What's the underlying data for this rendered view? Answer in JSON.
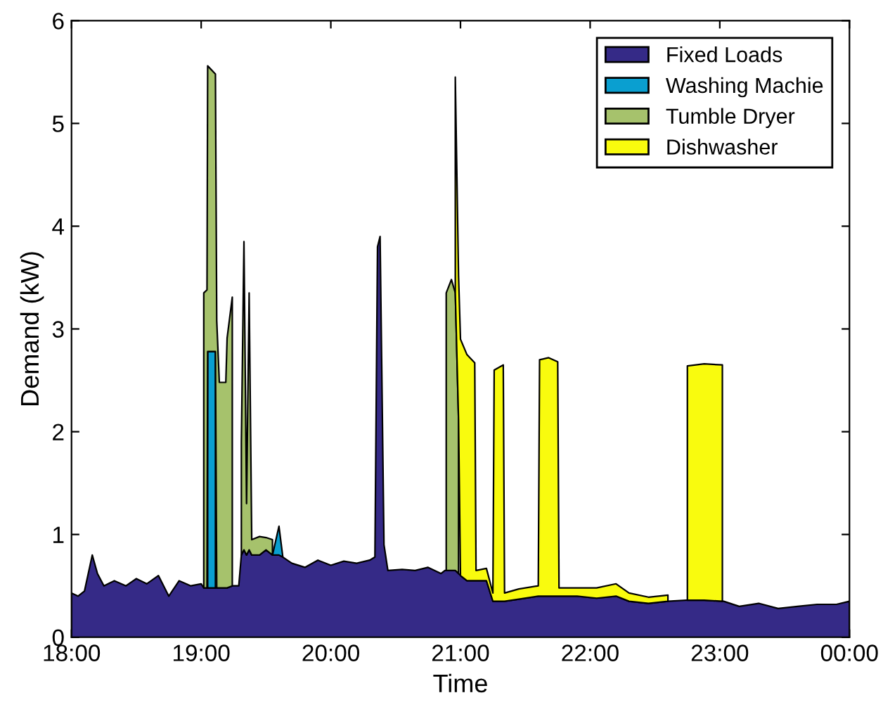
{
  "chart_data": {
    "type": "area",
    "stacked": true,
    "xlabel": "Time",
    "ylabel": "Demand (kW)",
    "x": [
      18.0,
      18.05,
      18.1,
      18.16,
      18.2,
      18.25,
      18.33,
      18.42,
      18.5,
      18.58,
      18.67,
      18.75,
      18.83,
      18.92,
      19.0,
      19.02,
      19.045,
      19.05,
      19.11,
      19.12,
      19.14,
      19.19,
      19.2,
      19.24,
      19.26,
      19.29,
      19.31,
      19.33,
      19.35,
      19.37,
      19.39,
      19.45,
      19.5,
      19.55,
      19.6,
      19.63,
      19.7,
      19.8,
      19.9,
      20.0,
      20.1,
      20.2,
      20.3,
      20.34,
      20.36,
      20.38,
      20.41,
      20.44,
      20.55,
      20.65,
      20.75,
      20.85,
      20.88,
      20.89,
      20.93,
      20.96,
      20.985,
      21.0,
      21.05,
      21.11,
      21.12,
      21.2,
      21.25,
      21.26,
      21.33,
      21.34,
      21.45,
      21.6,
      21.61,
      21.68,
      21.75,
      21.76,
      21.9,
      22.05,
      22.2,
      22.3,
      22.45,
      22.6,
      22.74,
      22.75,
      22.88,
      23.02,
      23.03,
      23.15,
      23.3,
      23.45,
      23.6,
      23.75,
      23.9,
      24.0
    ],
    "series": [
      {
        "name": "Fixed Loads",
        "color": "#352a87",
        "values": [
          0.43,
          0.4,
          0.45,
          0.8,
          0.62,
          0.5,
          0.55,
          0.5,
          0.57,
          0.52,
          0.6,
          0.4,
          0.55,
          0.5,
          0.52,
          0.48,
          0.48,
          0.48,
          0.48,
          0.48,
          0.48,
          0.48,
          0.48,
          0.5,
          0.5,
          0.5,
          0.8,
          0.85,
          0.8,
          0.85,
          0.8,
          0.8,
          0.85,
          0.8,
          0.8,
          0.78,
          0.72,
          0.68,
          0.75,
          0.7,
          0.74,
          0.72,
          0.75,
          0.78,
          3.8,
          3.9,
          0.9,
          0.65,
          0.66,
          0.65,
          0.68,
          0.62,
          0.65,
          0.65,
          0.65,
          0.65,
          0.62,
          0.6,
          0.55,
          0.55,
          0.55,
          0.55,
          0.35,
          0.35,
          0.35,
          0.35,
          0.37,
          0.4,
          0.4,
          0.4,
          0.4,
          0.4,
          0.4,
          0.38,
          0.4,
          0.35,
          0.33,
          0.35,
          0.36,
          0.36,
          0.36,
          0.35,
          0.35,
          0.3,
          0.33,
          0.28,
          0.3,
          0.32,
          0.32,
          0.35
        ]
      },
      {
        "name": "Washing Machie",
        "color": "#0a9fd0",
        "values": [
          null,
          null,
          null,
          null,
          null,
          null,
          null,
          null,
          null,
          null,
          null,
          null,
          null,
          null,
          null,
          null,
          null,
          2.3,
          2.3,
          null,
          null,
          null,
          null,
          null,
          null,
          null,
          null,
          null,
          null,
          null,
          null,
          null,
          null,
          0,
          0.28,
          0,
          null,
          null,
          null,
          null,
          null,
          null,
          null,
          null,
          null,
          null,
          null,
          null,
          null,
          null,
          null,
          null,
          null,
          null,
          null,
          null,
          null,
          null,
          null,
          null,
          null,
          null,
          null,
          null,
          null,
          null,
          null,
          null,
          null,
          null,
          null,
          null,
          null,
          null,
          null,
          null,
          null,
          null,
          null,
          null,
          null,
          null,
          null,
          null,
          null,
          null,
          null,
          null,
          null,
          null
        ]
      },
      {
        "name": "Tumble Dryer",
        "color": "#a6c26c",
        "values": [
          null,
          null,
          null,
          null,
          null,
          null,
          null,
          null,
          null,
          null,
          null,
          null,
          null,
          null,
          null,
          2.87,
          2.9,
          2.78,
          2.7,
          2.6,
          2.0,
          2.0,
          2.43,
          2.81,
          null,
          null,
          1.1,
          3.0,
          0.5,
          2.5,
          0.15,
          0.18,
          0.12,
          0.15,
          null,
          null,
          null,
          null,
          null,
          null,
          null,
          null,
          null,
          null,
          null,
          null,
          null,
          null,
          null,
          null,
          null,
          null,
          null,
          2.7,
          2.83,
          2.7,
          1.5,
          null,
          null,
          null,
          null,
          null,
          null,
          null,
          null,
          null,
          null,
          null,
          null,
          null,
          null,
          null,
          null,
          null,
          null,
          null,
          null,
          null,
          null,
          null,
          null,
          null,
          null,
          null,
          null,
          null,
          null,
          null,
          null,
          null
        ]
      },
      {
        "name": "Dishwasher",
        "color": "#f9fb0e",
        "values": [
          null,
          null,
          null,
          null,
          null,
          null,
          null,
          null,
          null,
          null,
          null,
          null,
          null,
          null,
          null,
          null,
          null,
          null,
          null,
          null,
          null,
          null,
          null,
          null,
          null,
          null,
          null,
          null,
          null,
          null,
          null,
          null,
          null,
          null,
          null,
          null,
          null,
          null,
          null,
          null,
          null,
          null,
          null,
          null,
          null,
          null,
          null,
          null,
          null,
          null,
          null,
          null,
          null,
          null,
          null,
          2.1,
          1.4,
          2.3,
          2.2,
          2.12,
          0.1,
          0.12,
          0.08,
          2.25,
          2.3,
          0.08,
          0.1,
          0.1,
          2.3,
          2.32,
          2.28,
          0.08,
          0.08,
          0.1,
          0.12,
          0.08,
          0.06,
          0.06,
          null,
          2.28,
          2.3,
          2.3,
          null,
          null,
          null,
          null,
          null,
          null,
          null,
          null
        ]
      }
    ],
    "xlim": [
      18,
      24
    ],
    "xticks": [
      {
        "value": 18,
        "label": "18:00"
      },
      {
        "value": 19,
        "label": "19:00"
      },
      {
        "value": 20,
        "label": "20:00"
      },
      {
        "value": 21,
        "label": "21:00"
      },
      {
        "value": 22,
        "label": "22:00"
      },
      {
        "value": 23,
        "label": "23:00"
      },
      {
        "value": 24,
        "label": "00:00"
      }
    ],
    "ylim": [
      0,
      6
    ],
    "yticks": [
      0,
      1,
      2,
      3,
      4,
      5,
      6
    ],
    "legend": "top right"
  }
}
